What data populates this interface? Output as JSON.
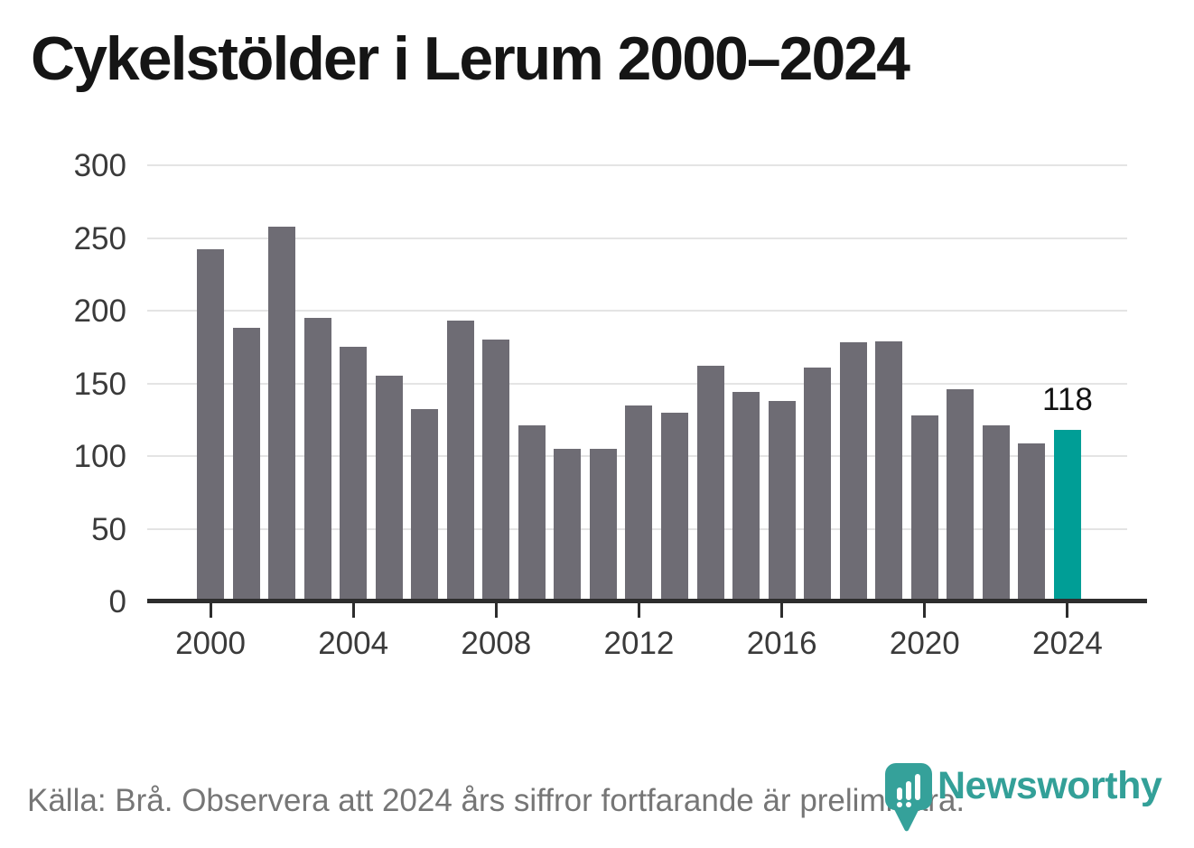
{
  "chart_data": {
    "type": "bar",
    "title": "Cykelstölder i Lerum 2000–2024",
    "categories": [
      "2000",
      "2001",
      "2002",
      "2003",
      "2004",
      "2005",
      "2006",
      "2007",
      "2008",
      "2009",
      "2010",
      "2011",
      "2012",
      "2013",
      "2014",
      "2015",
      "2016",
      "2017",
      "2018",
      "2019",
      "2020",
      "2021",
      "2022",
      "2023",
      "2024"
    ],
    "values": [
      242,
      188,
      258,
      195,
      175,
      155,
      132,
      193,
      180,
      121,
      105,
      105,
      135,
      130,
      162,
      144,
      138,
      161,
      178,
      179,
      128,
      146,
      121,
      109,
      118
    ],
    "xlabel": "",
    "ylabel": "",
    "ylim": [
      0,
      300
    ],
    "yticks": [
      0,
      50,
      100,
      150,
      200,
      250,
      300
    ],
    "xtick_labels": [
      "2000",
      "2004",
      "2008",
      "2012",
      "2016",
      "2020",
      "2024"
    ],
    "grid": "horizontal",
    "legend": "none",
    "bar_color": "#6e6c74",
    "highlight_color": "#009e96",
    "highlight_category": "2024",
    "highlight_value_label": "118"
  },
  "footer": {
    "source": "Källa: Brå. Observera att 2024 års siffror fortfarande är preliminära.",
    "logo_text": "Newsworthy",
    "logo_color": "#33a098"
  }
}
